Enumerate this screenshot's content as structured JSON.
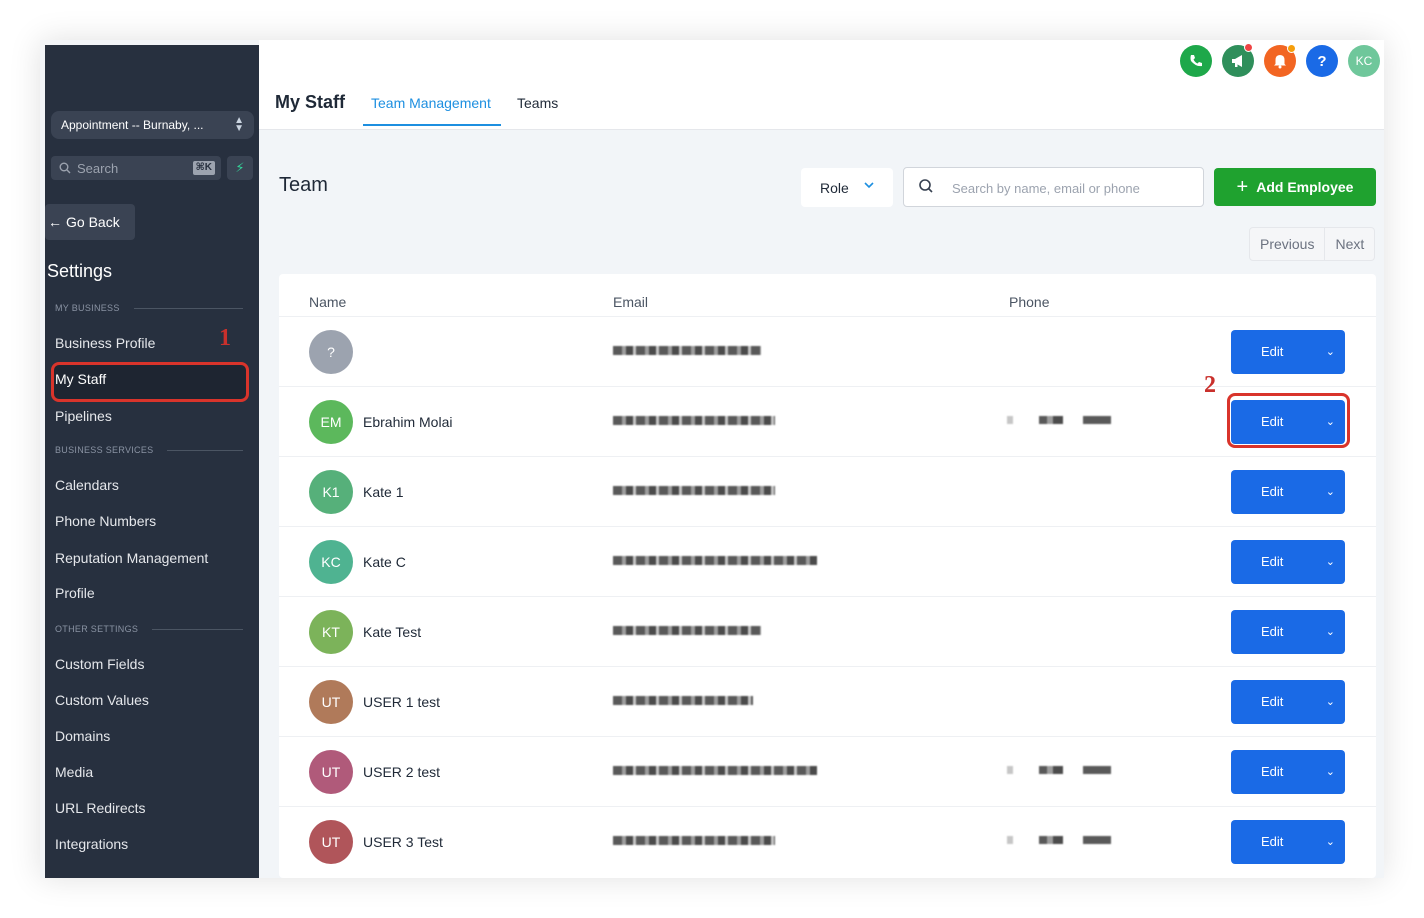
{
  "sidebar": {
    "location": "Appointment -- Burnaby, ...",
    "search_placeholder": "Search",
    "search_shortcut": "⌘K",
    "go_back": "Go Back",
    "settings_title": "Settings",
    "sections": {
      "my_business": "MY BUSINESS",
      "business_services": "BUSINESS SERVICES",
      "other_settings": "OTHER SETTINGS"
    },
    "items": {
      "business_profile": "Business Profile",
      "my_staff": "My Staff",
      "pipelines": "Pipelines",
      "calendars": "Calendars",
      "phone_numbers": "Phone Numbers",
      "reputation_management": "Reputation Management",
      "profile": "Profile",
      "custom_fields": "Custom Fields",
      "custom_values": "Custom Values",
      "domains": "Domains",
      "media": "Media",
      "url_redirects": "URL Redirects",
      "integrations": "Integrations"
    }
  },
  "annotations": {
    "marker_1": "1",
    "marker_2": "2"
  },
  "header": {
    "title": "My Staff",
    "tabs": [
      "Team Management",
      "Teams"
    ],
    "help": "?",
    "user_initials": "KC"
  },
  "main": {
    "section_title": "Team",
    "role_filter": "Role",
    "search_placeholder": "Search by name, email or phone",
    "add_employee": "Add Employee",
    "pager": {
      "previous": "Previous",
      "next": "Next"
    },
    "columns": [
      "Name",
      "Email",
      "Phone"
    ],
    "edit_label": "Edit",
    "rows": [
      {
        "initials": "?",
        "name": "",
        "color": "#9ca3af"
      },
      {
        "initials": "EM",
        "name": "Ebrahim Molai",
        "color": "#5cb85c"
      },
      {
        "initials": "K1",
        "name": "Kate 1",
        "color": "#56b07a"
      },
      {
        "initials": "KC",
        "name": "Kate C",
        "color": "#4fb391"
      },
      {
        "initials": "KT",
        "name": "Kate Test",
        "color": "#7cb35a"
      },
      {
        "initials": "UT",
        "name": "USER 1 test",
        "color": "#b07a5a"
      },
      {
        "initials": "UT",
        "name": "USER 2 test",
        "color": "#b05a7a"
      },
      {
        "initials": "UT",
        "name": "USER 3 Test",
        "color": "#b0555a"
      }
    ]
  },
  "colors": {
    "accent": "#1d8fe0",
    "edit_button": "#1a6ae6",
    "add_button": "#1fa22f",
    "sidebar": "#27303f",
    "highlight": "#d9342b"
  }
}
